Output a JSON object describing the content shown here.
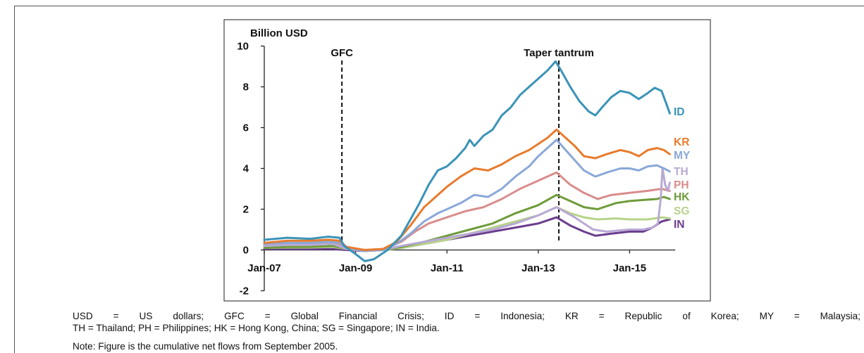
{
  "captions": {
    "line1": "USD = US dollars; GFC = Global Financial Crisis; ID = Indonesia; KR = Republic of Korea; MY = Malaysia;",
    "line2": "TH = Thailand; PH = Philippines; HK = Hong Kong, China; SG = Singapore; IN = India.",
    "note": "Note: Figure is the cumulative net flows from September 2005."
  },
  "chart_data": {
    "type": "line",
    "ylabel": "Billion USD",
    "ylim": [
      -2,
      10
    ],
    "yticks": [
      -2,
      0,
      2,
      4,
      6,
      8,
      10
    ],
    "xlim": [
      2006.95,
      2016.0
    ],
    "xticks": [
      {
        "x": 2007.0,
        "label": "Jan-07"
      },
      {
        "x": 2009.0,
        "label": "Jan-09"
      },
      {
        "x": 2011.0,
        "label": "Jan-11"
      },
      {
        "x": 2013.0,
        "label": "Jan-13"
      },
      {
        "x": 2015.0,
        "label": "Jan-15"
      }
    ],
    "events": [
      {
        "x": 2008.7,
        "label": "GFC"
      },
      {
        "x": 2013.45,
        "label": "Taper tantrum"
      }
    ],
    "legend_placement": "right",
    "grid": false,
    "series": [
      {
        "name": "ID",
        "color": "#3a93b8",
        "points": [
          [
            2007.0,
            0.5
          ],
          [
            2007.5,
            0.6
          ],
          [
            2008.0,
            0.55
          ],
          [
            2008.4,
            0.65
          ],
          [
            2008.65,
            0.6
          ],
          [
            2008.75,
            0.2
          ],
          [
            2009.0,
            -0.2
          ],
          [
            2009.2,
            -0.55
          ],
          [
            2009.4,
            -0.45
          ],
          [
            2009.7,
            0.0
          ],
          [
            2010.0,
            0.7
          ],
          [
            2010.2,
            1.5
          ],
          [
            2010.4,
            2.3
          ],
          [
            2010.6,
            3.2
          ],
          [
            2010.8,
            3.9
          ],
          [
            2011.0,
            4.1
          ],
          [
            2011.2,
            4.5
          ],
          [
            2011.4,
            5.0
          ],
          [
            2011.5,
            5.4
          ],
          [
            2011.6,
            5.1
          ],
          [
            2011.8,
            5.6
          ],
          [
            2012.0,
            5.9
          ],
          [
            2012.2,
            6.6
          ],
          [
            2012.4,
            7.0
          ],
          [
            2012.6,
            7.6
          ],
          [
            2012.8,
            8.0
          ],
          [
            2013.0,
            8.4
          ],
          [
            2013.2,
            8.8
          ],
          [
            2013.38,
            9.25
          ],
          [
            2013.5,
            8.8
          ],
          [
            2013.7,
            8.0
          ],
          [
            2013.9,
            7.3
          ],
          [
            2014.1,
            6.8
          ],
          [
            2014.25,
            6.6
          ],
          [
            2014.4,
            7.0
          ],
          [
            2014.6,
            7.5
          ],
          [
            2014.8,
            7.8
          ],
          [
            2015.0,
            7.7
          ],
          [
            2015.2,
            7.4
          ],
          [
            2015.4,
            7.7
          ],
          [
            2015.55,
            7.95
          ],
          [
            2015.7,
            7.8
          ],
          [
            2015.8,
            7.2
          ],
          [
            2015.88,
            6.7
          ]
        ]
      },
      {
        "name": "KR",
        "color": "#e87b2c",
        "points": [
          [
            2007.0,
            0.35
          ],
          [
            2007.5,
            0.45
          ],
          [
            2008.0,
            0.45
          ],
          [
            2008.4,
            0.5
          ],
          [
            2008.65,
            0.45
          ],
          [
            2008.8,
            0.15
          ],
          [
            2009.2,
            0.0
          ],
          [
            2009.6,
            0.05
          ],
          [
            2009.9,
            0.4
          ],
          [
            2010.2,
            1.2
          ],
          [
            2010.5,
            2.1
          ],
          [
            2010.8,
            2.7
          ],
          [
            2011.0,
            3.1
          ],
          [
            2011.3,
            3.6
          ],
          [
            2011.6,
            4.0
          ],
          [
            2011.9,
            3.9
          ],
          [
            2012.2,
            4.2
          ],
          [
            2012.5,
            4.6
          ],
          [
            2012.8,
            4.9
          ],
          [
            2013.0,
            5.2
          ],
          [
            2013.2,
            5.5
          ],
          [
            2013.4,
            5.9
          ],
          [
            2013.6,
            5.5
          ],
          [
            2013.8,
            5.1
          ],
          [
            2014.0,
            4.6
          ],
          [
            2014.25,
            4.5
          ],
          [
            2014.5,
            4.7
          ],
          [
            2014.8,
            4.9
          ],
          [
            2015.0,
            4.8
          ],
          [
            2015.2,
            4.6
          ],
          [
            2015.4,
            4.9
          ],
          [
            2015.6,
            5.0
          ],
          [
            2015.75,
            4.9
          ],
          [
            2015.88,
            4.7
          ]
        ]
      },
      {
        "name": "MY",
        "color": "#8aa8d8",
        "points": [
          [
            2007.0,
            0.3
          ],
          [
            2007.5,
            0.35
          ],
          [
            2008.0,
            0.35
          ],
          [
            2008.4,
            0.4
          ],
          [
            2008.65,
            0.35
          ],
          [
            2008.8,
            0.1
          ],
          [
            2009.2,
            -0.05
          ],
          [
            2009.6,
            0.0
          ],
          [
            2009.9,
            0.3
          ],
          [
            2010.2,
            0.8
          ],
          [
            2010.5,
            1.4
          ],
          [
            2010.8,
            1.8
          ],
          [
            2011.0,
            2.0
          ],
          [
            2011.3,
            2.3
          ],
          [
            2011.6,
            2.7
          ],
          [
            2011.9,
            2.6
          ],
          [
            2012.2,
            3.0
          ],
          [
            2012.5,
            3.6
          ],
          [
            2012.8,
            4.1
          ],
          [
            2013.0,
            4.6
          ],
          [
            2013.2,
            5.0
          ],
          [
            2013.4,
            5.4
          ],
          [
            2013.6,
            4.9
          ],
          [
            2013.8,
            4.4
          ],
          [
            2014.0,
            3.9
          ],
          [
            2014.25,
            3.6
          ],
          [
            2014.5,
            3.8
          ],
          [
            2014.8,
            4.0
          ],
          [
            2015.0,
            4.0
          ],
          [
            2015.2,
            3.9
          ],
          [
            2015.4,
            4.1
          ],
          [
            2015.6,
            4.15
          ],
          [
            2015.75,
            4.0
          ],
          [
            2015.88,
            3.85
          ]
        ]
      },
      {
        "name": "TH",
        "color": "#b8a9d4",
        "points": [
          [
            2007.0,
            0.2
          ],
          [
            2007.5,
            0.25
          ],
          [
            2008.0,
            0.25
          ],
          [
            2008.5,
            0.3
          ],
          [
            2008.8,
            0.05
          ],
          [
            2009.2,
            -0.05
          ],
          [
            2009.6,
            0.0
          ],
          [
            2010.0,
            0.2
          ],
          [
            2010.5,
            0.4
          ],
          [
            2011.0,
            0.6
          ],
          [
            2011.5,
            0.8
          ],
          [
            2012.0,
            1.0
          ],
          [
            2012.5,
            1.3
          ],
          [
            2013.0,
            1.7
          ],
          [
            2013.4,
            2.1
          ],
          [
            2013.8,
            1.6
          ],
          [
            2014.2,
            1.0
          ],
          [
            2014.5,
            0.9
          ],
          [
            2015.0,
            1.0
          ],
          [
            2015.3,
            1.0
          ],
          [
            2015.5,
            1.1
          ],
          [
            2015.62,
            1.3
          ],
          [
            2015.68,
            2.5
          ],
          [
            2015.72,
            4.0
          ],
          [
            2015.78,
            3.2
          ],
          [
            2015.84,
            2.9
          ],
          [
            2015.88,
            3.3
          ]
        ]
      },
      {
        "name": "PH",
        "color": "#d98c8c",
        "points": [
          [
            2007.0,
            0.25
          ],
          [
            2007.5,
            0.3
          ],
          [
            2008.0,
            0.3
          ],
          [
            2008.5,
            0.35
          ],
          [
            2008.8,
            0.1
          ],
          [
            2009.2,
            0.0
          ],
          [
            2009.6,
            0.05
          ],
          [
            2010.0,
            0.4
          ],
          [
            2010.3,
            0.9
          ],
          [
            2010.6,
            1.3
          ],
          [
            2011.0,
            1.6
          ],
          [
            2011.4,
            1.9
          ],
          [
            2011.8,
            2.1
          ],
          [
            2012.2,
            2.5
          ],
          [
            2012.6,
            3.0
          ],
          [
            2013.0,
            3.4
          ],
          [
            2013.4,
            3.8
          ],
          [
            2013.7,
            3.2
          ],
          [
            2014.0,
            2.8
          ],
          [
            2014.3,
            2.5
          ],
          [
            2014.6,
            2.7
          ],
          [
            2015.0,
            2.8
          ],
          [
            2015.4,
            2.9
          ],
          [
            2015.7,
            3.0
          ],
          [
            2015.88,
            2.9
          ]
        ]
      },
      {
        "name": "HK",
        "color": "#6e9b3a",
        "points": [
          [
            2007.0,
            0.1
          ],
          [
            2007.5,
            0.15
          ],
          [
            2008.0,
            0.15
          ],
          [
            2008.5,
            0.2
          ],
          [
            2008.8,
            0.05
          ],
          [
            2009.2,
            0.0
          ],
          [
            2009.6,
            0.0
          ],
          [
            2010.0,
            0.15
          ],
          [
            2010.5,
            0.4
          ],
          [
            2011.0,
            0.7
          ],
          [
            2011.5,
            1.0
          ],
          [
            2012.0,
            1.3
          ],
          [
            2012.5,
            1.8
          ],
          [
            2013.0,
            2.2
          ],
          [
            2013.4,
            2.7
          ],
          [
            2013.7,
            2.4
          ],
          [
            2014.0,
            2.1
          ],
          [
            2014.3,
            2.0
          ],
          [
            2014.7,
            2.3
          ],
          [
            2015.0,
            2.4
          ],
          [
            2015.3,
            2.45
          ],
          [
            2015.6,
            2.5
          ],
          [
            2015.75,
            2.6
          ],
          [
            2015.88,
            2.5
          ]
        ]
      },
      {
        "name": "SG",
        "color": "#b8d38a",
        "points": [
          [
            2007.0,
            0.1
          ],
          [
            2007.5,
            0.12
          ],
          [
            2008.0,
            0.12
          ],
          [
            2008.5,
            0.15
          ],
          [
            2008.8,
            0.05
          ],
          [
            2009.2,
            0.0
          ],
          [
            2009.6,
            0.0
          ],
          [
            2010.0,
            0.1
          ],
          [
            2010.5,
            0.3
          ],
          [
            2011.0,
            0.5
          ],
          [
            2011.5,
            0.8
          ],
          [
            2012.0,
            1.1
          ],
          [
            2012.5,
            1.4
          ],
          [
            2013.0,
            1.7
          ],
          [
            2013.4,
            2.1
          ],
          [
            2013.7,
            1.8
          ],
          [
            2014.0,
            1.6
          ],
          [
            2014.3,
            1.5
          ],
          [
            2014.7,
            1.55
          ],
          [
            2015.0,
            1.5
          ],
          [
            2015.4,
            1.5
          ],
          [
            2015.7,
            1.6
          ],
          [
            2015.88,
            1.55
          ]
        ]
      },
      {
        "name": "IN",
        "color": "#6a3d8e",
        "points": [
          [
            2007.0,
            0.05
          ],
          [
            2007.5,
            0.05
          ],
          [
            2008.0,
            0.05
          ],
          [
            2008.5,
            0.05
          ],
          [
            2008.8,
            0.0
          ],
          [
            2009.2,
            -0.05
          ],
          [
            2009.6,
            0.0
          ],
          [
            2010.0,
            0.1
          ],
          [
            2010.5,
            0.3
          ],
          [
            2011.0,
            0.5
          ],
          [
            2011.5,
            0.7
          ],
          [
            2012.0,
            0.9
          ],
          [
            2012.5,
            1.1
          ],
          [
            2013.0,
            1.3
          ],
          [
            2013.4,
            1.6
          ],
          [
            2013.7,
            1.2
          ],
          [
            2014.0,
            0.9
          ],
          [
            2014.25,
            0.7
          ],
          [
            2014.6,
            0.8
          ],
          [
            2015.0,
            0.9
          ],
          [
            2015.3,
            0.9
          ],
          [
            2015.5,
            1.1
          ],
          [
            2015.7,
            1.4
          ],
          [
            2015.88,
            1.5
          ]
        ]
      }
    ]
  }
}
